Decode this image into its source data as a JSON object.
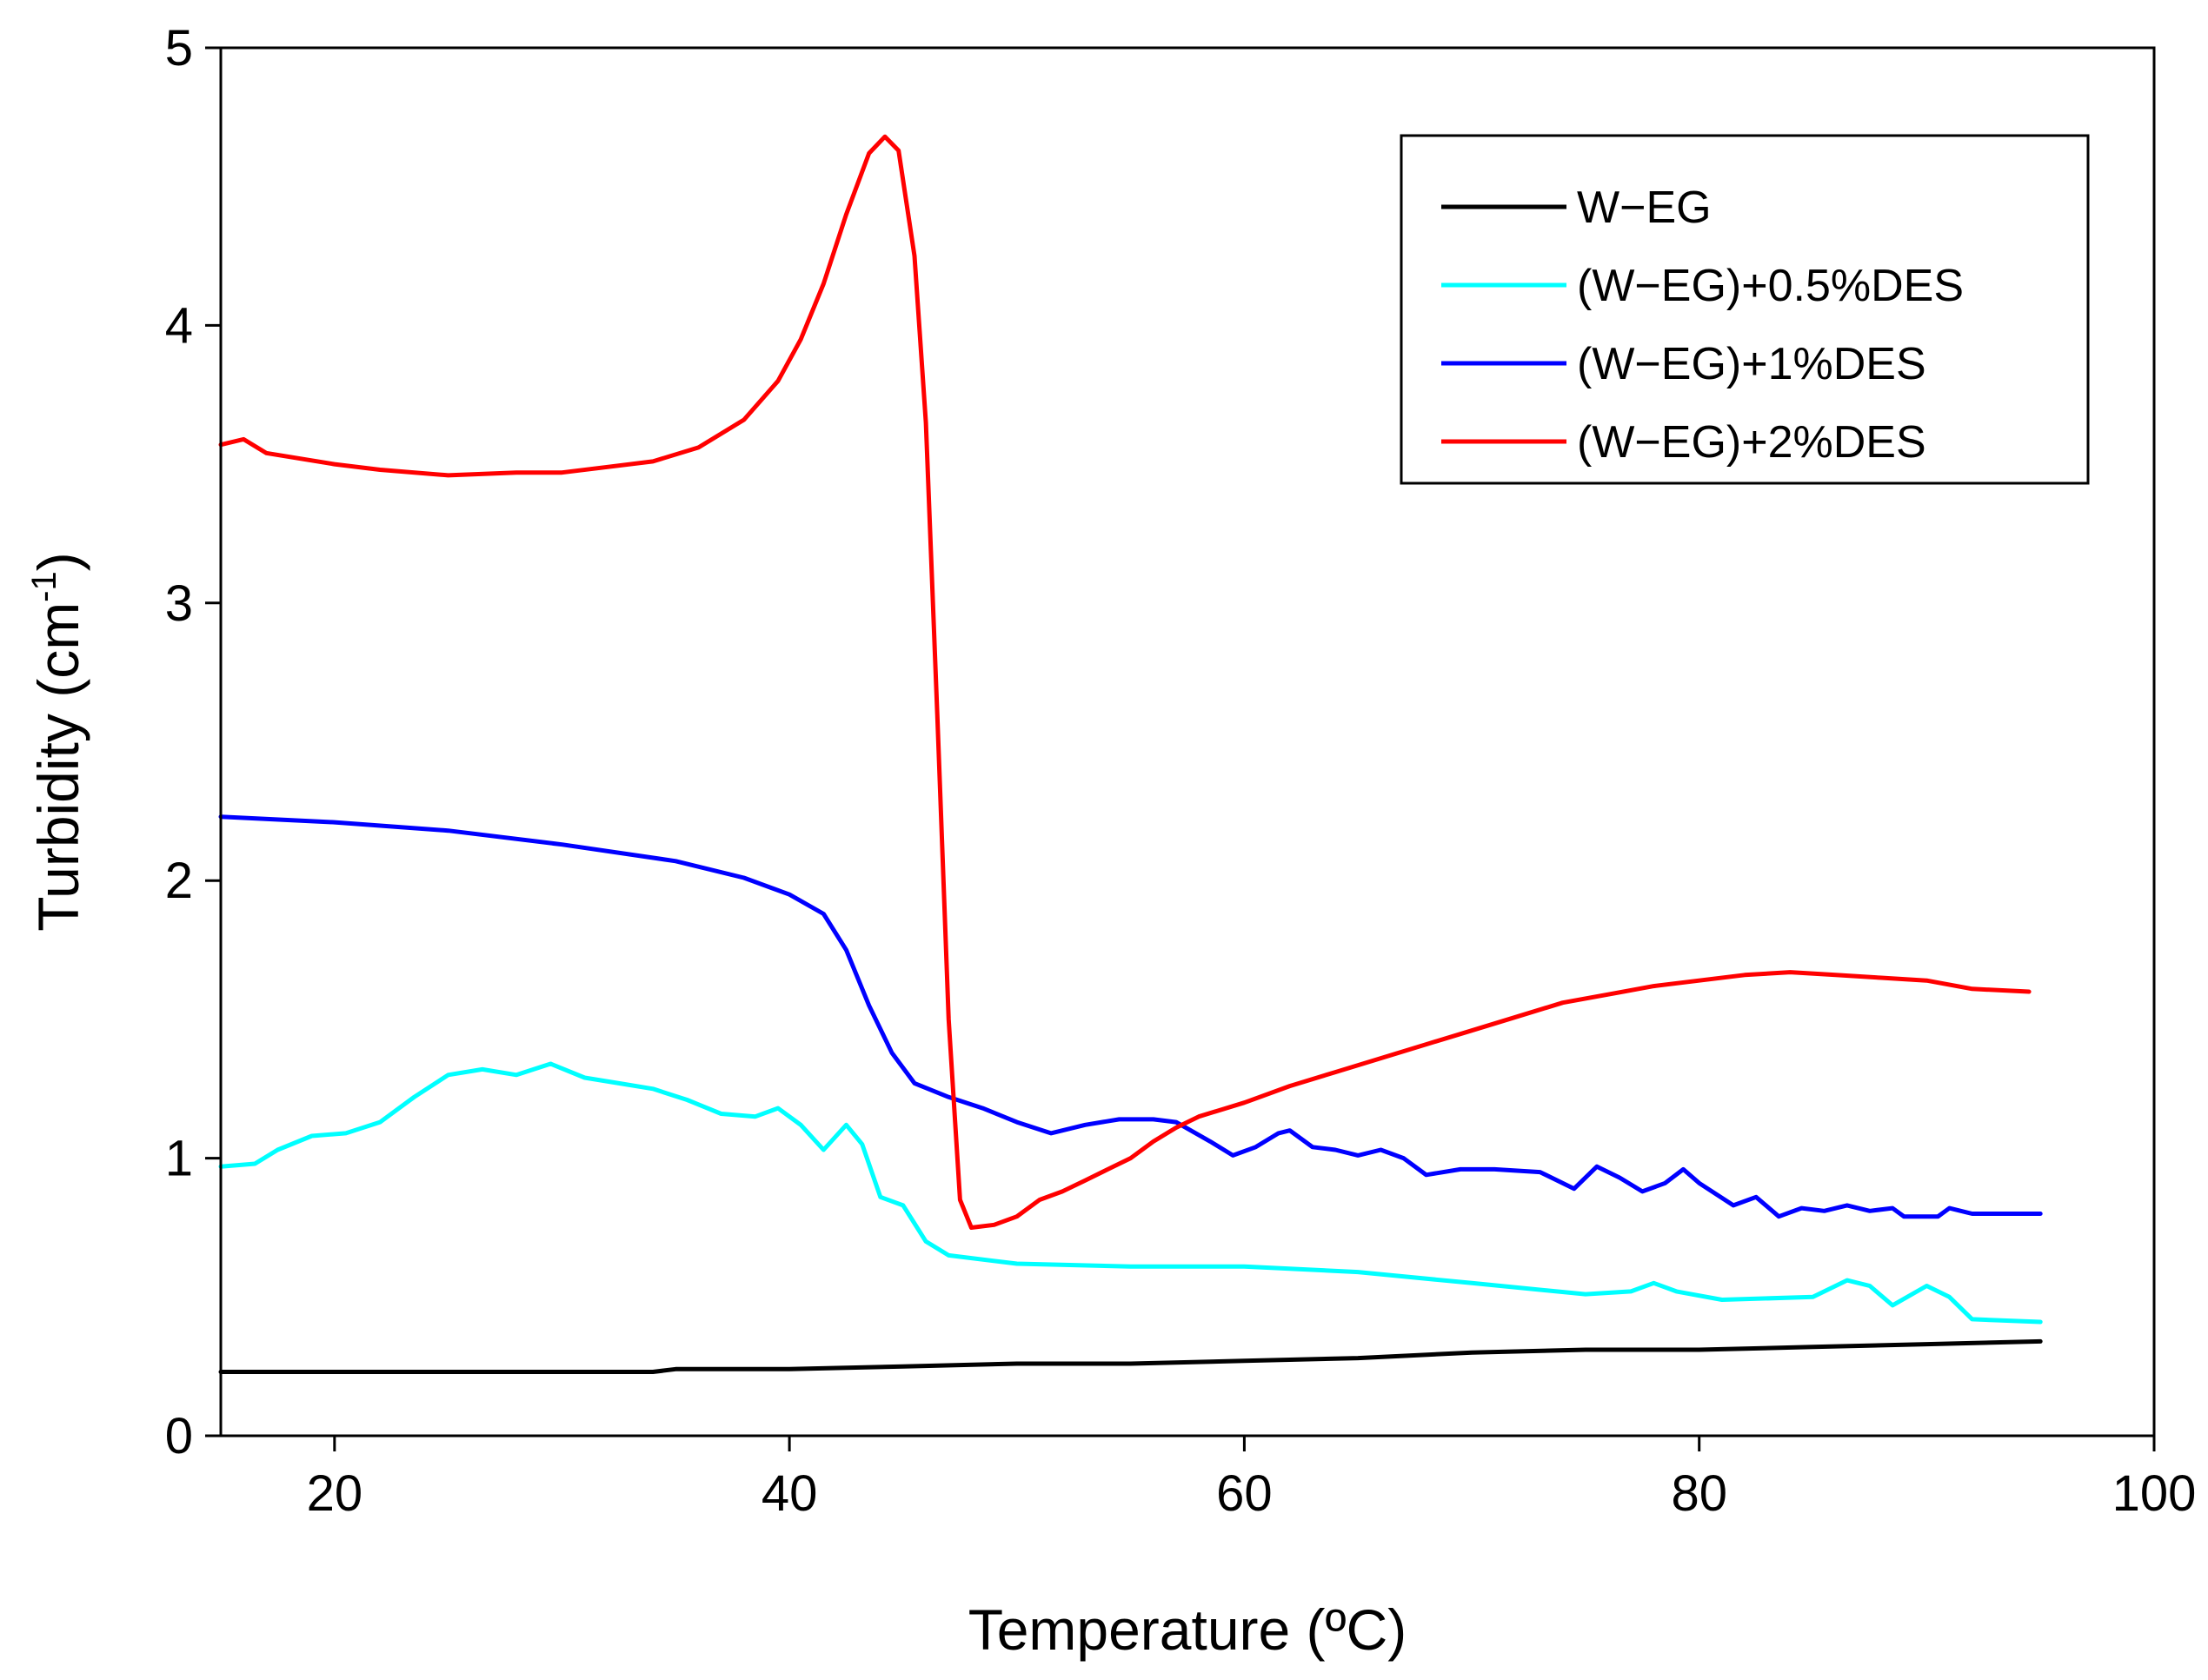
{
  "chart_data": {
    "type": "line",
    "title": "",
    "xlabel": "Temperature (ºC)",
    "ylabel": "Turbidity (cm",
    "ylabel_superscript": "-1",
    "ylabel_close": ")",
    "xlim": [
      15,
      100
    ],
    "ylim": [
      0,
      5
    ],
    "xticks": [
      20,
      40,
      60,
      80,
      100
    ],
    "yticks": [
      0,
      1,
      2,
      3,
      4,
      5
    ],
    "grid": false,
    "legend_position": "top-right",
    "series": [
      {
        "name": "W−EG",
        "color": "#000000",
        "points": [
          [
            15,
            0.23
          ],
          [
            20,
            0.23
          ],
          [
            25,
            0.23
          ],
          [
            30,
            0.23
          ],
          [
            34,
            0.23
          ],
          [
            35,
            0.24
          ],
          [
            40,
            0.24
          ],
          [
            45,
            0.25
          ],
          [
            50,
            0.26
          ],
          [
            55,
            0.26
          ],
          [
            60,
            0.27
          ],
          [
            65,
            0.28
          ],
          [
            70,
            0.3
          ],
          [
            75,
            0.31
          ],
          [
            80,
            0.31
          ],
          [
            85,
            0.32
          ],
          [
            90,
            0.33
          ],
          [
            95,
            0.34
          ]
        ]
      },
      {
        "name": "(W−EG)+0.5%DES",
        "color": "#00FFFF",
        "points": [
          [
            15,
            0.97
          ],
          [
            16.5,
            0.98
          ],
          [
            17.5,
            1.03
          ],
          [
            19,
            1.08
          ],
          [
            20.5,
            1.09
          ],
          [
            22,
            1.13
          ],
          [
            23.5,
            1.22
          ],
          [
            25,
            1.3
          ],
          [
            26.5,
            1.32
          ],
          [
            28,
            1.3
          ],
          [
            29.5,
            1.34
          ],
          [
            31,
            1.29
          ],
          [
            32.5,
            1.27
          ],
          [
            34,
            1.25
          ],
          [
            35.5,
            1.21
          ],
          [
            37,
            1.16
          ],
          [
            38.5,
            1.15
          ],
          [
            39.5,
            1.18
          ],
          [
            40.5,
            1.12
          ],
          [
            41.5,
            1.03
          ],
          [
            42.5,
            1.12
          ],
          [
            43.2,
            1.05
          ],
          [
            44,
            0.86
          ],
          [
            45,
            0.83
          ],
          [
            46,
            0.7
          ],
          [
            47,
            0.65
          ],
          [
            50,
            0.62
          ],
          [
            55,
            0.61
          ],
          [
            60,
            0.61
          ],
          [
            65,
            0.59
          ],
          [
            70,
            0.55
          ],
          [
            75,
            0.51
          ],
          [
            77,
            0.52
          ],
          [
            78,
            0.55
          ],
          [
            79,
            0.52
          ],
          [
            81,
            0.49
          ],
          [
            85,
            0.5
          ],
          [
            86.5,
            0.56
          ],
          [
            87.5,
            0.54
          ],
          [
            88.5,
            0.47
          ],
          [
            90,
            0.54
          ],
          [
            91,
            0.5
          ],
          [
            92,
            0.42
          ],
          [
            95,
            0.41
          ]
        ]
      },
      {
        "name": "(W−EG)+1%DES",
        "color": "#0000FF",
        "points": [
          [
            15,
            2.23
          ],
          [
            20,
            2.21
          ],
          [
            25,
            2.18
          ],
          [
            30,
            2.13
          ],
          [
            35,
            2.07
          ],
          [
            38,
            2.01
          ],
          [
            40,
            1.95
          ],
          [
            41.5,
            1.88
          ],
          [
            42.5,
            1.75
          ],
          [
            43.5,
            1.55
          ],
          [
            44.5,
            1.38
          ],
          [
            45.5,
            1.27
          ],
          [
            47,
            1.22
          ],
          [
            48.5,
            1.18
          ],
          [
            50,
            1.13
          ],
          [
            51.5,
            1.09
          ],
          [
            53,
            1.12
          ],
          [
            54.5,
            1.14
          ],
          [
            56,
            1.14
          ],
          [
            57,
            1.13
          ],
          [
            58.5,
            1.06
          ],
          [
            59.5,
            1.01
          ],
          [
            60.5,
            1.04
          ],
          [
            61.5,
            1.09
          ],
          [
            62,
            1.1
          ],
          [
            63,
            1.04
          ],
          [
            64,
            1.03
          ],
          [
            65,
            1.01
          ],
          [
            66,
            1.03
          ],
          [
            67,
            1.0
          ],
          [
            68,
            0.94
          ],
          [
            69.5,
            0.96
          ],
          [
            71,
            0.96
          ],
          [
            73,
            0.95
          ],
          [
            74.5,
            0.89
          ],
          [
            75.5,
            0.97
          ],
          [
            76.5,
            0.93
          ],
          [
            77.5,
            0.88
          ],
          [
            78.5,
            0.91
          ],
          [
            79.3,
            0.96
          ],
          [
            80,
            0.91
          ],
          [
            81.5,
            0.83
          ],
          [
            82.5,
            0.86
          ],
          [
            83.5,
            0.79
          ],
          [
            84.5,
            0.82
          ],
          [
            85.5,
            0.81
          ],
          [
            86.5,
            0.83
          ],
          [
            87.5,
            0.81
          ],
          [
            88.5,
            0.82
          ],
          [
            89,
            0.79
          ],
          [
            90.5,
            0.79
          ],
          [
            91,
            0.82
          ],
          [
            92,
            0.8
          ],
          [
            95,
            0.8
          ]
        ]
      },
      {
        "name": "(W−EG)+2%DES",
        "color": "#FF0000",
        "points": [
          [
            15,
            3.57
          ],
          [
            16,
            3.59
          ],
          [
            17,
            3.54
          ],
          [
            20,
            3.5
          ],
          [
            22,
            3.48
          ],
          [
            25,
            3.46
          ],
          [
            28,
            3.47
          ],
          [
            30,
            3.47
          ],
          [
            32,
            3.49
          ],
          [
            34,
            3.51
          ],
          [
            36,
            3.56
          ],
          [
            38,
            3.66
          ],
          [
            39.5,
            3.8
          ],
          [
            40.5,
            3.95
          ],
          [
            41.5,
            4.15
          ],
          [
            42.5,
            4.4
          ],
          [
            43.5,
            4.62
          ],
          [
            44.2,
            4.68
          ],
          [
            44.8,
            4.63
          ],
          [
            45.5,
            4.25
          ],
          [
            46,
            3.65
          ],
          [
            46.5,
            2.6
          ],
          [
            47,
            1.5
          ],
          [
            47.5,
            0.85
          ],
          [
            48,
            0.75
          ],
          [
            49,
            0.76
          ],
          [
            50,
            0.79
          ],
          [
            51,
            0.85
          ],
          [
            52,
            0.88
          ],
          [
            53,
            0.92
          ],
          [
            54,
            0.96
          ],
          [
            55,
            1.0
          ],
          [
            56,
            1.06
          ],
          [
            57,
            1.11
          ],
          [
            58,
            1.15
          ],
          [
            60,
            1.2
          ],
          [
            62,
            1.26
          ],
          [
            64,
            1.31
          ],
          [
            66,
            1.36
          ],
          [
            68,
            1.41
          ],
          [
            70,
            1.46
          ],
          [
            72,
            1.51
          ],
          [
            74,
            1.56
          ],
          [
            76,
            1.59
          ],
          [
            78,
            1.62
          ],
          [
            80,
            1.64
          ],
          [
            82,
            1.66
          ],
          [
            84,
            1.67
          ],
          [
            86,
            1.66
          ],
          [
            88,
            1.65
          ],
          [
            90,
            1.64
          ],
          [
            92,
            1.61
          ],
          [
            94.5,
            1.6
          ]
        ]
      }
    ]
  }
}
